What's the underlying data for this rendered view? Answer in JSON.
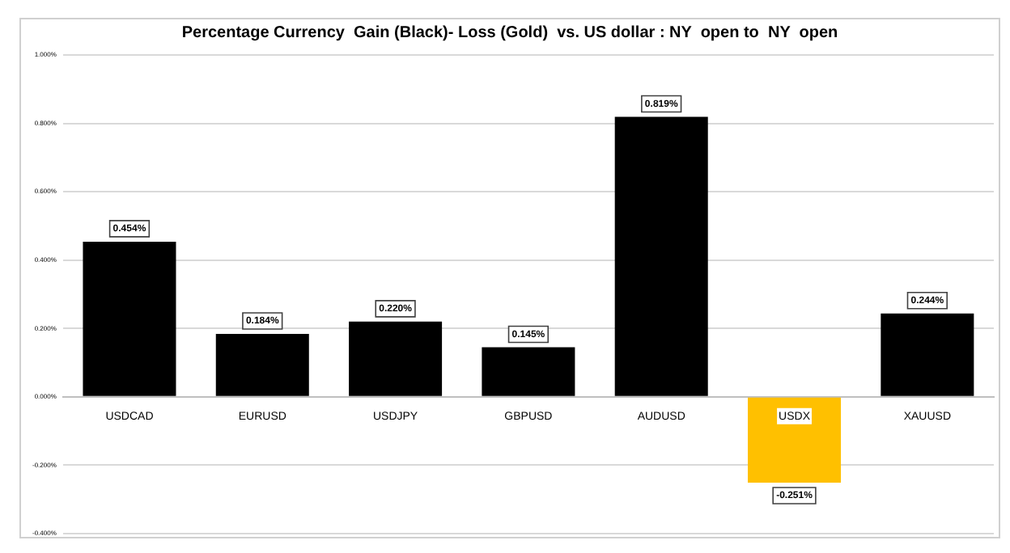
{
  "chart_data": {
    "type": "bar",
    "title": "Percentage Currency  Gain (Black)- Loss (Gold)  vs. US dollar : NY  open to  NY  open",
    "categories": [
      "USDCAD",
      "EURUSD",
      "USDJPY",
      "GBPUSD",
      "AUDUSD",
      "USDX",
      "XAUUSD"
    ],
    "values": [
      0.454,
      0.184,
      0.22,
      0.145,
      0.819,
      -0.251,
      0.244
    ],
    "colors": [
      "#000000",
      "#000000",
      "#000000",
      "#000000",
      "#000000",
      "#ffc000",
      "#000000"
    ],
    "value_labels": [
      "0.454%",
      "0.184%",
      "0.220%",
      "0.145%",
      "0.819%",
      "-0.251%",
      "0.244%"
    ],
    "ylim": [
      -0.4,
      1
    ],
    "yticks": [
      {
        "value": -0.4,
        "label": "-0.400%"
      },
      {
        "value": -0.2,
        "label": "-0.200%"
      },
      {
        "value": 0,
        "label": "0.000%"
      },
      {
        "value": 0.2,
        "label": "0.200%"
      },
      {
        "value": 0.4,
        "label": "0.400%"
      },
      {
        "value": 0.6,
        "label": "0.600%"
      },
      {
        "value": 0.8,
        "label": "0.800%"
      },
      {
        "value": 1,
        "label": "1.000%"
      }
    ],
    "grid": "y",
    "legend": false
  }
}
